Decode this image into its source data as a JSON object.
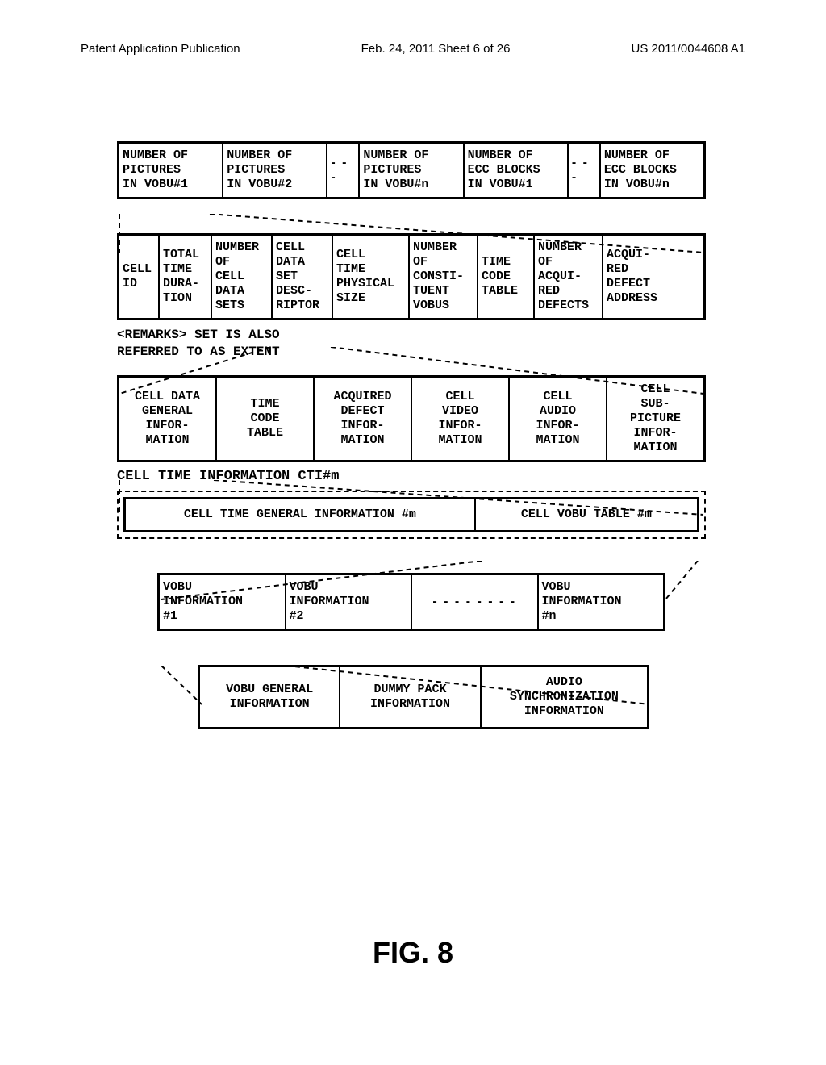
{
  "header": {
    "left": "Patent Application Publication",
    "center": "Feb. 24, 2011  Sheet 6 of 26",
    "right": "US 2011/0044608 A1"
  },
  "row1": {
    "c1": "NUMBER OF\nPICTURES\nIN VOBU#1",
    "c2": "NUMBER OF\nPICTURES\nIN VOBU#2",
    "c3": "NUMBER OF\nPICTURES\nIN VOBU#n",
    "c4": "NUMBER OF\nECC BLOCKS\nIN VOBU#1",
    "c5": "NUMBER OF\nECC BLOCKS\nIN VOBU#n"
  },
  "row2": {
    "c1": "CELL\nID",
    "c2": "TOTAL\nTIME\nDURA-\nTION",
    "c3": "NUMBER\nOF\nCELL\nDATA\nSETS",
    "c4": "CELL\nDATA\nSET\nDESC-\nRIPTOR",
    "c5": "CELL\nTIME\nPHYSICAL\nSIZE",
    "c6": "NUMBER\nOF\nCONSTI-\nTUENT\nVOBUS",
    "c7": "TIME\nCODE\nTABLE",
    "c8": "NUMBER\nOF\nACQUI-\nRED\nDEFECTS",
    "c9": "ACQUI-\nRED\nDEFECT\nADDRESS"
  },
  "remarks": "<REMARKS> SET IS ALSO\nREFERRED TO AS EXTENT",
  "row3": {
    "c1": "CELL DATA\nGENERAL\nINFOR-\nMATION",
    "c2": "TIME\nCODE\nTABLE",
    "c3": "ACQUIRED\nDEFECT\nINFOR-\nMATION",
    "c4": "CELL\nVIDEO\nINFOR-\nMATION",
    "c5": "CELL\nAUDIO\nINFOR-\nMATION",
    "c6": "CELL\nSUB-\nPICTURE\nINFOR-\nMATION"
  },
  "caption1": "CELL TIME INFORMATION CTI#m",
  "row4": {
    "c1": "CELL TIME GENERAL INFORMATION #m",
    "c2": "CELL VOBU TABLE #m"
  },
  "row5": {
    "c1": "VOBU\nINFORMATION\n#1",
    "c2": "VOBU\nINFORMATION\n#2",
    "c3": "VOBU\nINFORMATION\n#n"
  },
  "row6": {
    "c1": "VOBU GENERAL\nINFORMATION",
    "c2": "DUMMY PACK\nINFORMATION",
    "c3": "AUDIO\nSYNCHRONIZATION\nINFORMATION"
  },
  "figure_label": "FIG. 8",
  "ellipsis": "- - -"
}
